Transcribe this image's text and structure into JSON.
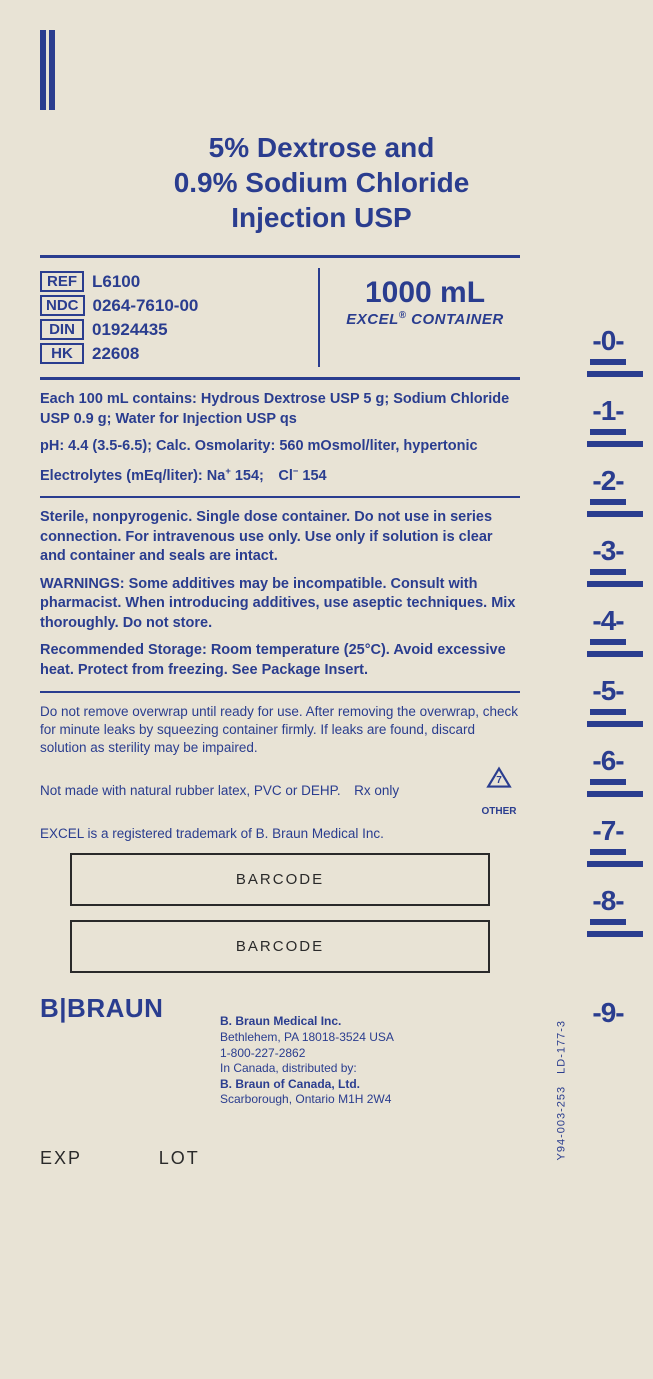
{
  "title_line1": "5% Dextrose and",
  "title_line2": "0.9% Sodium Chloride",
  "title_line3": "Injection USP",
  "refs": {
    "REF": "L6100",
    "NDC": "0264-7610-00",
    "DIN": "01924435",
    "HK": "22608"
  },
  "volume": "1000 mL",
  "container_brand": "EXCEL",
  "container_suffix": " CONTAINER",
  "composition": "Each 100 mL contains: Hydrous Dextrose USP 5 g; Sodium Chloride USP 0.9 g; Water for Injection USP qs",
  "ph_osm": "pH: 4.4 (3.5-6.5); Calc. Osmolarity: 560 mOsmol/liter, hypertonic",
  "electrolytes_prefix": "Electrolytes (mEq/liter): Na",
  "electrolytes_mid": " 154; Cl",
  "electrolytes_suffix": " 154",
  "sterile": "Sterile, nonpyrogenic. Single dose container. Do not use in series connection. For intravenous use only. Use only if solution is clear and container and seals are intact.",
  "warnings_label": "WARNINGS:",
  "warnings_text": " Some additives may be incompatible. Consult with pharmacist. When introducing additives, use aseptic techniques. Mix thoroughly. Do not store.",
  "storage": "Recommended Storage: Room temperature (25°C). Avoid excessive heat. Protect from freezing. See Package Insert.",
  "overwrap": "Do not remove overwrap until ready for use. After removing the overwrap, check for minute leaks by squeezing container firmly. If leaks are found, discard solution as sterility may be impaired.",
  "latex": "Not made with natural rubber latex, PVC or DEHP. Rx only",
  "trademark": "EXCEL is a registered trademark of B. Braun Medical Inc.",
  "recycle_num": "7",
  "recycle_label": "OTHER",
  "barcode_label": "BARCODE",
  "side_code": "Y94-003-253 LD-177-3",
  "brand": "B|BRAUN",
  "company_name": "B. Braun Medical Inc.",
  "company_addr": "Bethlehem, PA 18018-3524 USA",
  "company_phone": "1-800-227-2862",
  "canada_intro": "In Canada, distributed by:",
  "canada_name": "B. Braun of Canada, Ltd.",
  "canada_addr": "Scarborough, Ontario M1H 2W4",
  "exp": "EXP",
  "lot": "LOT",
  "scale": [
    "0",
    "1",
    "2",
    "3",
    "4",
    "5",
    "6",
    "7",
    "8",
    "9"
  ],
  "colors": {
    "ink": "#2a3d8f",
    "bg": "#e8e3d5",
    "black": "#2a2a2a"
  }
}
